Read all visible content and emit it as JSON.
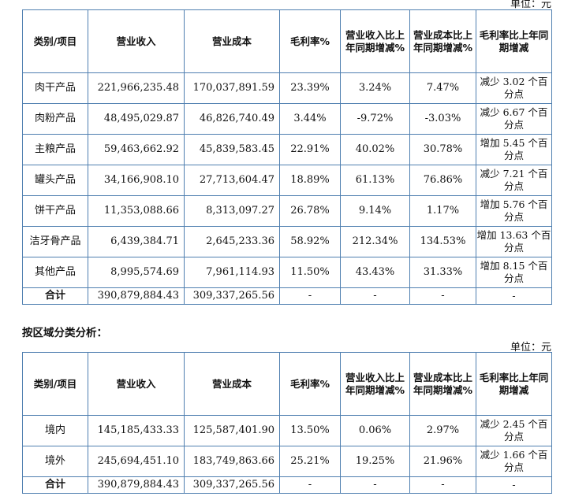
{
  "unit_label": "单位：元",
  "section2_title": "按区域分类分析：",
  "headers1": [
    "类别/项目",
    "营业收入",
    "营业成本",
    "毛利率%",
    "营业收入比上年同期增减%",
    "营业成本比上年同期增减%",
    "毛利率比上年同期增减"
  ],
  "headers2": [
    "类别/项目",
    "营业收入",
    "营业成本",
    "毛利率%",
    "营业收入比上年同期增减%",
    "营业成本比上年同期增减%",
    "毛利率比上年同期增减"
  ],
  "table1": [
    {
      "name": "肉干产品",
      "revenue": "221,966,235.48",
      "cost": "170,037,891.59",
      "margin": "23.39%",
      "rev_chg": "3.24%",
      "cost_chg": "7.47%",
      "margin_chg": "减少 3.02 个百分点"
    },
    {
      "name": "肉粉产品",
      "revenue": "48,495,029.87",
      "cost": "46,826,740.49",
      "margin": "3.44%",
      "rev_chg": "-9.72%",
      "cost_chg": "-3.03%",
      "margin_chg": "减少 6.67 个百分点"
    },
    {
      "name": "主粮产品",
      "revenue": "59,463,662.92",
      "cost": "45,839,583.45",
      "margin": "22.91%",
      "rev_chg": "40.02%",
      "cost_chg": "30.78%",
      "margin_chg": "增加 5.45 个百分点"
    },
    {
      "name": "罐头产品",
      "revenue": "34,166,908.10",
      "cost": "27,713,604.47",
      "margin": "18.89%",
      "rev_chg": "61.13%",
      "cost_chg": "76.86%",
      "margin_chg": "减少 7.21 个百分点"
    },
    {
      "name": "饼干产品",
      "revenue": "11,353,088.66",
      "cost": "8,313,097.27",
      "margin": "26.78%",
      "rev_chg": "9.14%",
      "cost_chg": "1.17%",
      "margin_chg": "增加 5.76 个百分点"
    },
    {
      "name": "洁牙骨产品",
      "revenue": "6,439,384.71",
      "cost": "2,645,233.36",
      "margin": "58.92%",
      "rev_chg": "212.34%",
      "cost_chg": "134.53%",
      "margin_chg": "增加 13.63 个百分点"
    },
    {
      "name": "其他产品",
      "revenue": "8,995,574.69",
      "cost": "7,961,114.93",
      "margin": "11.50%",
      "rev_chg": "43.43%",
      "cost_chg": "31.33%",
      "margin_chg": "增加 8.15 个百分点"
    },
    {
      "name": "合计",
      "revenue": "390,879,884.43",
      "cost": "309,337,265.56",
      "margin": "-",
      "rev_chg": "-",
      "cost_chg": "-",
      "margin_chg": "-"
    }
  ],
  "table2": [
    {
      "name": "境内",
      "revenue": "145,185,433.33",
      "cost": "125,587,401.90",
      "margin": "13.50%",
      "rev_chg": "0.06%",
      "cost_chg": "2.97%",
      "margin_chg": "减少 2.45 个百分点"
    },
    {
      "name": "境外",
      "revenue": "245,694,451.10",
      "cost": "183,749,863.66",
      "margin": "25.21%",
      "rev_chg": "19.25%",
      "cost_chg": "21.96%",
      "margin_chg": "减少 1.66 个百分点"
    },
    {
      "name": "合计",
      "revenue": "390,879,884.43",
      "cost": "309,337,265.56",
      "margin": "-",
      "rev_chg": "-",
      "cost_chg": "-",
      "margin_chg": "-"
    }
  ]
}
